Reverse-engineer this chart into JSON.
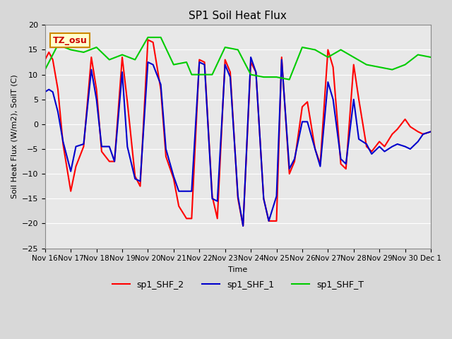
{
  "title": "SP1 Soil Heat Flux",
  "ylabel": "Soil Heat Flux (W/m2), SoilT (C)",
  "xlabel": "Time",
  "ylim": [
    -25,
    20
  ],
  "bg_color": "#e8e8e8",
  "plot_bg_color": "#f0f0f0",
  "annotation_text": "TZ_osu",
  "annotation_bg": "#ffffcc",
  "annotation_border": "#cc8800",
  "annotation_text_color": "#cc0000",
  "legend_entries": [
    "sp1_SHF_2",
    "sp1_SHF_1",
    "sp1_SHF_T"
  ],
  "legend_colors": [
    "#ff0000",
    "#0000cc",
    "#00cc00"
  ],
  "x_tick_labels": [
    "Nov 16",
    "Nov 17",
    "Nov 18",
    "Nov 19",
    "Nov 20",
    "Nov 21",
    "Nov 22",
    "Nov 23",
    "Nov 24",
    "Nov 25",
    "Nov 26",
    "Nov 27",
    "Nov 28",
    "Nov 29",
    "Nov 30",
    "Dec 1"
  ],
  "shf2_x": [
    0,
    0.15,
    0.3,
    0.5,
    0.7,
    1.0,
    1.2,
    1.5,
    1.8,
    2.0,
    2.2,
    2.5,
    2.7,
    3.0,
    3.2,
    3.5,
    3.7,
    4.0,
    4.2,
    4.5,
    4.7,
    5.0,
    5.2,
    5.5,
    5.7,
    6.0,
    6.2,
    6.5,
    6.7,
    7.0,
    7.2,
    7.5,
    7.7,
    8.0,
    8.2,
    8.5,
    8.7,
    9.0,
    9.2,
    9.5,
    9.7,
    10.0,
    10.2,
    10.5,
    10.7,
    11.0,
    11.2,
    11.5,
    11.7,
    12.0,
    12.2,
    12.5,
    12.7,
    13.0,
    13.2,
    13.5,
    13.7,
    14.0,
    14.2,
    14.5,
    14.7,
    15.0
  ],
  "shf2_y": [
    13.0,
    14.5,
    13.0,
    7.0,
    -4.0,
    -13.5,
    -8.5,
    -4.5,
    13.5,
    7.0,
    -5.5,
    -7.5,
    -7.5,
    13.5,
    4.5,
    -10.5,
    -12.5,
    17.0,
    16.5,
    7.0,
    -6.5,
    -11.0,
    -16.5,
    -19.0,
    -19.0,
    13.0,
    12.5,
    -14.5,
    -19.0,
    13.0,
    10.5,
    -15.0,
    -20.5,
    12.5,
    10.5,
    -15.0,
    -19.5,
    -19.5,
    13.5,
    -10.0,
    -7.5,
    3.5,
    4.5,
    -5.0,
    -8.0,
    15.0,
    11.5,
    -8.0,
    -9.0,
    12.0,
    5.0,
    -4.5,
    -5.5,
    -3.5,
    -4.5,
    -2.0,
    -1.0,
    1.0,
    -0.5,
    -1.5,
    -2.0,
    -1.5
  ],
  "shf1_x": [
    0,
    0.15,
    0.3,
    0.5,
    0.7,
    1.0,
    1.2,
    1.5,
    1.8,
    2.0,
    2.2,
    2.5,
    2.7,
    3.0,
    3.2,
    3.5,
    3.7,
    4.0,
    4.2,
    4.5,
    4.7,
    5.0,
    5.2,
    5.5,
    5.7,
    6.0,
    6.2,
    6.5,
    6.7,
    7.0,
    7.2,
    7.5,
    7.7,
    8.0,
    8.2,
    8.5,
    8.7,
    9.0,
    9.2,
    9.5,
    9.7,
    10.0,
    10.2,
    10.5,
    10.7,
    11.0,
    11.2,
    11.5,
    11.7,
    12.0,
    12.2,
    12.5,
    12.7,
    13.0,
    13.2,
    13.5,
    13.7,
    14.0,
    14.2,
    14.5,
    14.7,
    15.0
  ],
  "shf1_y": [
    6.5,
    7.0,
    6.5,
    2.5,
    -3.5,
    -9.5,
    -4.5,
    -4.0,
    11.0,
    5.0,
    -4.5,
    -4.5,
    -7.5,
    10.5,
    -4.5,
    -11.0,
    -11.5,
    12.5,
    12.0,
    8.0,
    -5.0,
    -10.5,
    -13.5,
    -13.5,
    -13.5,
    12.5,
    12.0,
    -15.0,
    -15.5,
    12.0,
    9.5,
    -14.5,
    -20.5,
    13.5,
    10.5,
    -15.0,
    -19.5,
    -14.5,
    13.0,
    -9.0,
    -7.0,
    0.5,
    0.5,
    -5.0,
    -8.5,
    8.5,
    5.0,
    -7.0,
    -8.0,
    5.0,
    -3.0,
    -4.0,
    -6.0,
    -4.5,
    -5.5,
    -4.5,
    -4.0,
    -4.5,
    -5.0,
    -3.5,
    -2.0,
    -1.5
  ],
  "shfT_x": [
    0,
    0.5,
    1.0,
    1.5,
    2.0,
    2.5,
    3.0,
    3.5,
    4.0,
    4.5,
    5.0,
    5.5,
    5.7,
    6.0,
    6.5,
    7.0,
    7.5,
    8.0,
    8.5,
    9.0,
    9.5,
    10.0,
    10.5,
    11.0,
    11.5,
    12.0,
    12.5,
    13.0,
    13.5,
    14.0,
    14.5,
    15.0
  ],
  "shfT_y": [
    11.0,
    16.0,
    15.0,
    14.5,
    15.5,
    13.0,
    14.0,
    13.0,
    17.5,
    17.5,
    12.0,
    12.5,
    10.0,
    10.0,
    10.0,
    15.5,
    15.0,
    10.0,
    9.5,
    9.5,
    9.0,
    15.5,
    15.0,
    13.5,
    15.0,
    13.5,
    12.0,
    11.5,
    11.0,
    12.0,
    14.0,
    13.5
  ]
}
